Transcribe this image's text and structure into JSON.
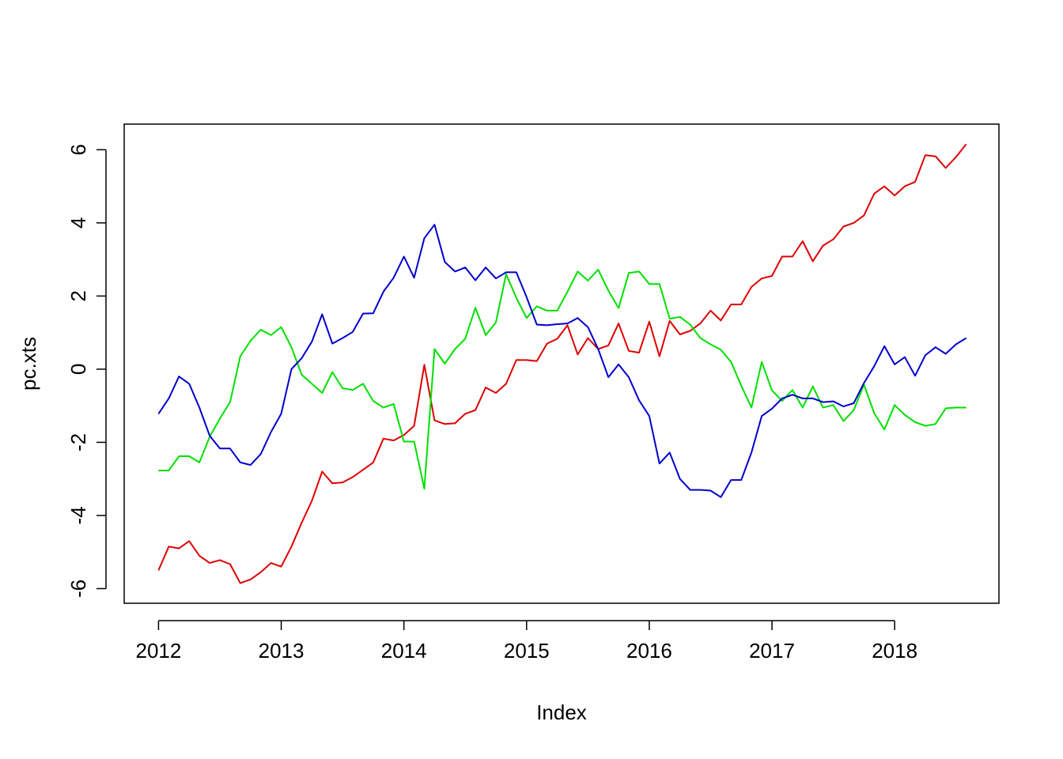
{
  "chart_data": {
    "type": "line",
    "title": "",
    "xlabel": "Index",
    "ylabel": "pc.xts",
    "xlim": [
      2011.72,
      2018.85
    ],
    "ylim": [
      -6.4,
      6.7
    ],
    "x_ticks": [
      2012,
      2013,
      2014,
      2015,
      2016,
      2017,
      2018
    ],
    "x_tick_labels": [
      "2012",
      "2013",
      "2014",
      "2015",
      "2016",
      "2017",
      "2018"
    ],
    "y_ticks": [
      -6,
      -4,
      -2,
      0,
      2,
      4,
      6
    ],
    "y_tick_labels": [
      "-6",
      "-4",
      "-2",
      "0",
      "2",
      "4",
      "6"
    ],
    "grid": false,
    "legend": "none",
    "x_start": 2012.0,
    "x_step": 0.08333,
    "series": [
      {
        "color": "#DF0000",
        "values": [
          -5.5,
          -4.85,
          -4.9,
          -4.7,
          -5.1,
          -5.3,
          -5.22,
          -5.33,
          -5.85,
          -5.75,
          -5.55,
          -5.3,
          -5.4,
          -4.85,
          -4.2,
          -3.6,
          -2.8,
          -3.12,
          -3.1,
          -2.95,
          -2.75,
          -2.55,
          -1.9,
          -1.95,
          -1.8,
          -1.55,
          0.12,
          -1.4,
          -1.5,
          -1.48,
          -1.22,
          -1.12,
          -0.5,
          -0.65,
          -0.4,
          0.25,
          0.25,
          0.22,
          0.7,
          0.83,
          1.2,
          0.4,
          0.85,
          0.55,
          0.65,
          1.25,
          0.5,
          0.45,
          1.3,
          0.35,
          1.32,
          0.95,
          1.05,
          1.25,
          1.6,
          1.33,
          1.77,
          1.77,
          2.25,
          2.48,
          2.55,
          3.08,
          3.08,
          3.5,
          2.95,
          3.38,
          3.55,
          3.9,
          4.0,
          4.2,
          4.8,
          5.0,
          4.75,
          5.0,
          5.12,
          5.85,
          5.82,
          5.5,
          5.8,
          6.15
        ]
      },
      {
        "color": "#00E000",
        "values": [
          -2.77,
          -2.77,
          -2.38,
          -2.38,
          -2.55,
          -1.85,
          -1.35,
          -0.9,
          0.35,
          0.78,
          1.08,
          0.93,
          1.15,
          0.6,
          -0.15,
          -0.4,
          -0.65,
          -0.08,
          -0.52,
          -0.57,
          -0.4,
          -0.87,
          -1.05,
          -0.95,
          -1.98,
          -1.98,
          -3.27,
          0.55,
          0.15,
          0.55,
          0.83,
          1.68,
          0.93,
          1.28,
          2.6,
          1.95,
          1.4,
          1.72,
          1.6,
          1.6,
          2.12,
          2.67,
          2.42,
          2.72,
          2.15,
          1.67,
          2.63,
          2.67,
          2.33,
          2.33,
          1.38,
          1.43,
          1.22,
          0.85,
          0.68,
          0.53,
          0.2,
          -0.45,
          -1.05,
          0.2,
          -0.58,
          -0.87,
          -0.57,
          -1.05,
          -0.47,
          -1.05,
          -0.98,
          -1.42,
          -1.12,
          -0.42,
          -1.2,
          -1.65,
          -0.98,
          -1.25,
          -1.45,
          -1.55,
          -1.5,
          -1.07,
          -1.05,
          -1.05
        ]
      },
      {
        "color": "#0000CF",
        "values": [
          -1.22,
          -0.8,
          -0.2,
          -0.4,
          -1.05,
          -1.82,
          -2.17,
          -2.17,
          -2.55,
          -2.62,
          -2.32,
          -1.72,
          -1.22,
          0.0,
          0.3,
          0.75,
          1.5,
          0.7,
          0.85,
          1.02,
          1.52,
          1.53,
          2.12,
          2.5,
          3.08,
          2.5,
          3.58,
          3.95,
          2.93,
          2.67,
          2.78,
          2.43,
          2.78,
          2.48,
          2.65,
          2.65,
          1.97,
          1.22,
          1.2,
          1.23,
          1.25,
          1.4,
          1.15,
          0.55,
          -0.22,
          0.13,
          -0.22,
          -0.85,
          -1.28,
          -2.58,
          -2.28,
          -3.0,
          -3.3,
          -3.3,
          -3.32,
          -3.5,
          -3.03,
          -3.03,
          -2.28,
          -1.28,
          -1.08,
          -0.8,
          -0.7,
          -0.8,
          -0.8,
          -0.9,
          -0.88,
          -1.02,
          -0.93,
          -0.38,
          0.08,
          0.63,
          0.13,
          0.33,
          -0.18,
          0.38,
          0.6,
          0.42,
          0.68,
          0.85
        ]
      }
    ]
  }
}
